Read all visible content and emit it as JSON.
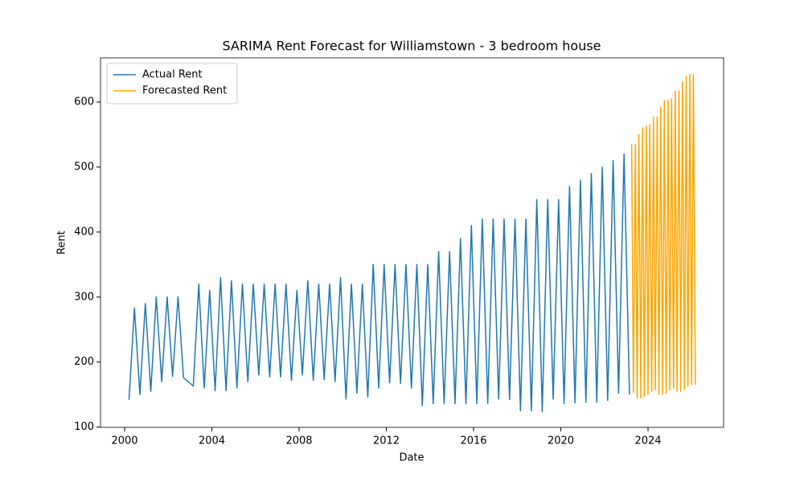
{
  "chart_data": {
    "type": "line",
    "title": "SARIMA Rent Forecast for Williamstown - 3 bedroom house",
    "xlabel": "Date",
    "ylabel": "Rent",
    "xlim": [
      1998.894,
      2027.465
    ],
    "ylim": [
      99.5,
      668
    ],
    "xticks": [
      2000,
      2004,
      2008,
      2012,
      2016,
      2020,
      2024
    ],
    "yticks": [
      100,
      200,
      300,
      400,
      500,
      600
    ],
    "legend": "upper left",
    "series": [
      {
        "name": "Actual Rent",
        "color": "#1f77b4",
        "x": [
          2000.2,
          2000.45,
          2000.7,
          2000.95,
          2001.2,
          2001.45,
          2001.7,
          2001.95,
          2002.2,
          2002.45,
          2002.7,
          2003.15,
          2003.4,
          2003.65,
          2003.9,
          2004.15,
          2004.4,
          2004.65,
          2004.9,
          2005.15,
          2005.4,
          2005.65,
          2005.9,
          2006.15,
          2006.4,
          2006.65,
          2006.9,
          2007.15,
          2007.4,
          2007.65,
          2007.9,
          2008.15,
          2008.4,
          2008.65,
          2008.9,
          2009.15,
          2009.4,
          2009.65,
          2009.9,
          2010.15,
          2010.4,
          2010.65,
          2010.9,
          2011.15,
          2011.4,
          2011.65,
          2011.9,
          2012.15,
          2012.4,
          2012.65,
          2012.9,
          2013.15,
          2013.4,
          2013.65,
          2013.9,
          2014.15,
          2014.4,
          2014.65,
          2014.9,
          2015.15,
          2015.4,
          2015.65,
          2015.9,
          2016.15,
          2016.4,
          2016.65,
          2016.9,
          2017.15,
          2017.4,
          2017.65,
          2017.9,
          2018.15,
          2018.4,
          2018.65,
          2018.9,
          2019.15,
          2019.4,
          2019.65,
          2019.9,
          2020.15,
          2020.4,
          2020.65,
          2020.9,
          2021.15,
          2021.4,
          2021.65,
          2021.9,
          2022.15,
          2022.4,
          2022.65,
          2022.9,
          2023.15
        ],
        "values": [
          142,
          283,
          150,
          290,
          155,
          300,
          170,
          300,
          178,
          300,
          176,
          163,
          320,
          160,
          310,
          156,
          330,
          156,
          325,
          160,
          320,
          170,
          320,
          180,
          320,
          177,
          320,
          177,
          320,
          172,
          310,
          180,
          325,
          172,
          320,
          173,
          320,
          170,
          330,
          143,
          320,
          152,
          320,
          146,
          350,
          160,
          350,
          168,
          350,
          167,
          350,
          160,
          350,
          133,
          350,
          136,
          370,
          136,
          370,
          136,
          390,
          136,
          410,
          136,
          420,
          136,
          420,
          143,
          420,
          142,
          420,
          125,
          420,
          125,
          450,
          124,
          450,
          143,
          450,
          136,
          470,
          137,
          480,
          138,
          490,
          138,
          500,
          141,
          510,
          152,
          520,
          150
        ]
      },
      {
        "name": "Forecasted Rent",
        "color": "#ffa500",
        "x": [
          2023.25,
          2023.33,
          2023.42,
          2023.5,
          2023.58,
          2023.67,
          2023.75,
          2023.83,
          2023.92,
          2024,
          2024.08,
          2024.17,
          2024.25,
          2024.33,
          2024.42,
          2024.5,
          2024.58,
          2024.67,
          2024.75,
          2024.83,
          2024.92,
          2025,
          2025.08,
          2025.17,
          2025.25,
          2025.33,
          2025.42,
          2025.5,
          2025.58,
          2025.67,
          2025.75,
          2025.83,
          2025.92,
          2026,
          2026.08,
          2026.17
        ],
        "values": [
          535,
          153,
          535,
          145,
          550,
          145,
          560,
          147,
          563,
          150,
          565,
          155,
          577,
          157,
          577,
          150,
          592,
          150,
          602,
          152,
          603,
          157,
          605,
          160,
          617,
          155,
          617,
          155,
          631,
          158,
          640,
          163,
          642,
          165,
          642,
          165
        ]
      }
    ]
  }
}
